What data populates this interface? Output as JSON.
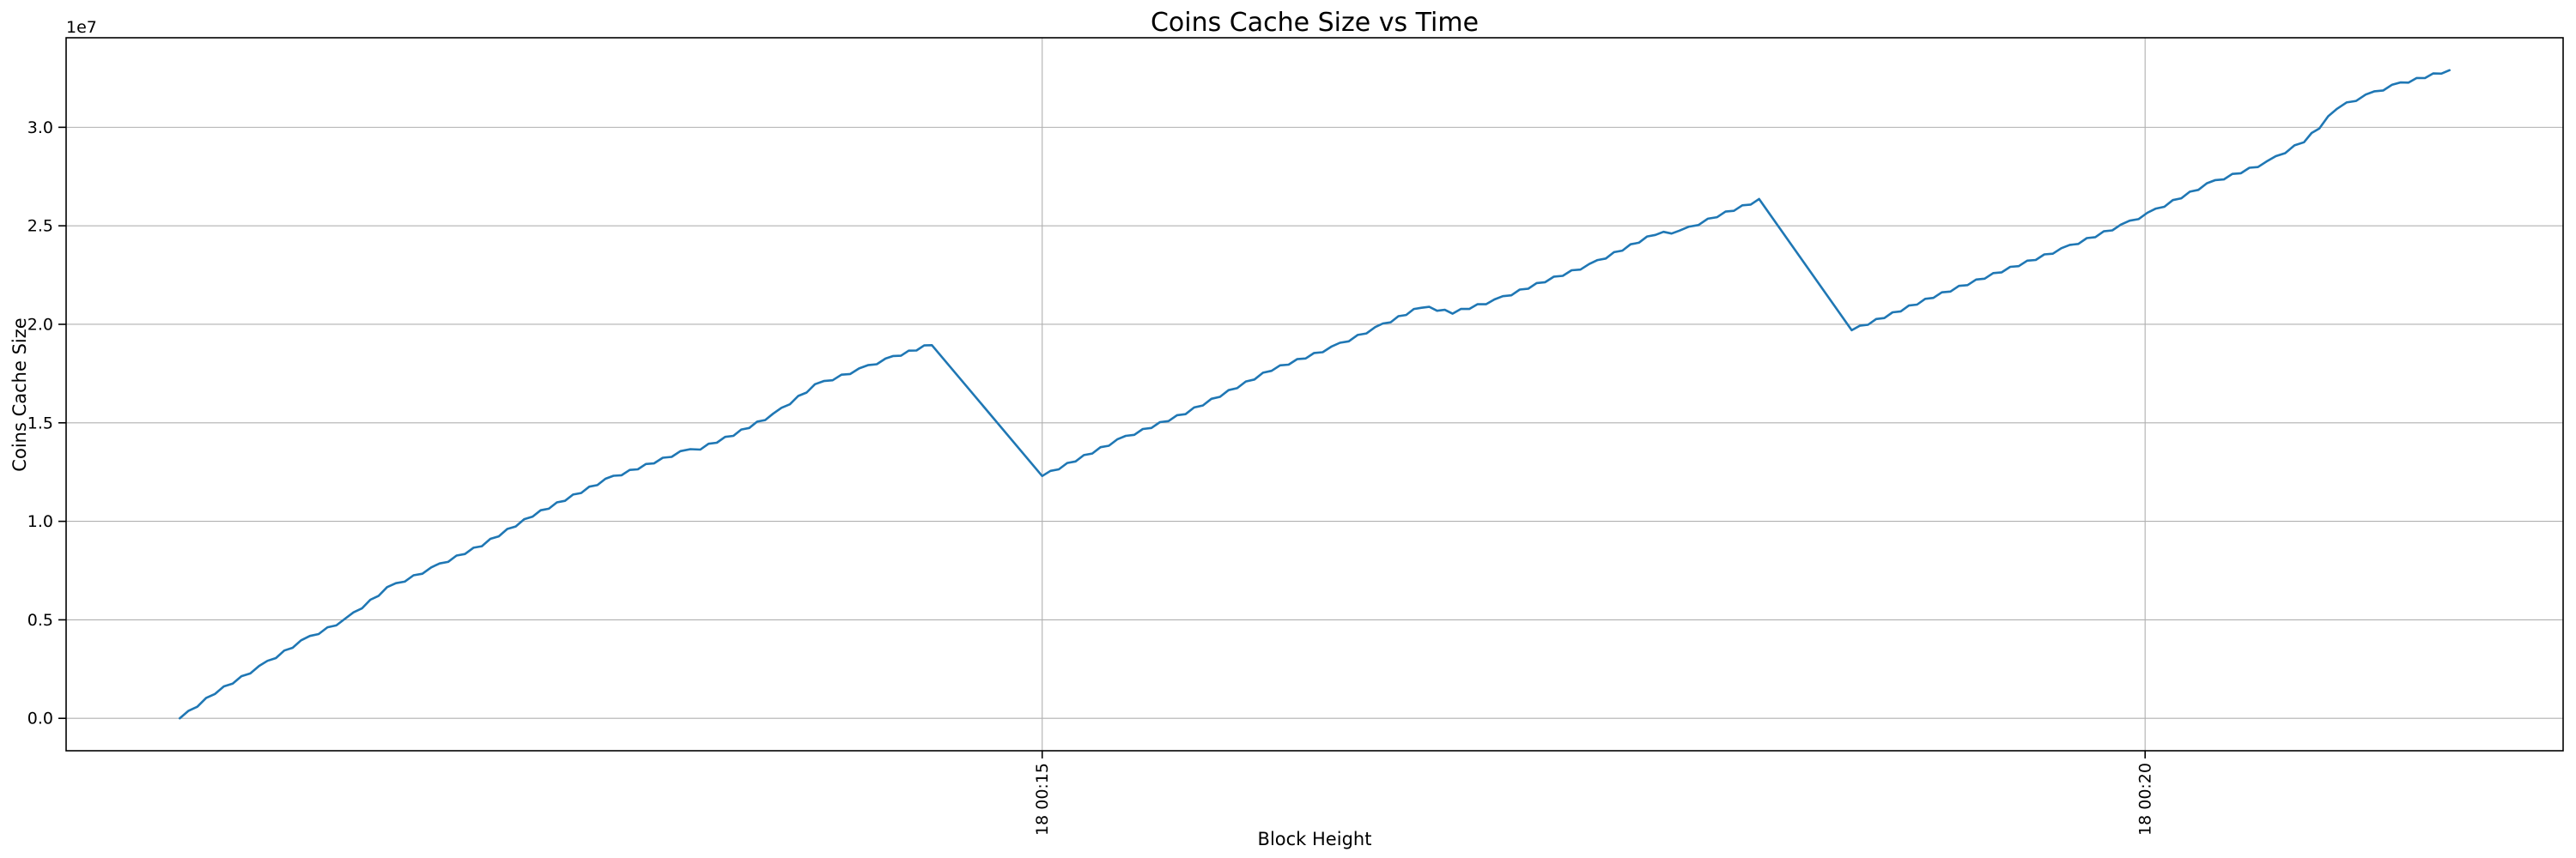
{
  "chart_data": {
    "type": "line",
    "title": "Coins Cache Size vs Time",
    "xlabel": "Block Height",
    "ylabel": "Coins Cache Size",
    "y_offset_label": "1e7",
    "grid": true,
    "legend": null,
    "colors": {
      "line": "#1f77b4",
      "grid": "#b0b0b0",
      "spine": "#000000",
      "background": "#ffffff"
    },
    "x_axis": {
      "unit": "time (day hh:mm), minutes since day-18 00:00",
      "lim_minutes": [
        10.575,
        21.895
      ],
      "ticks": [
        {
          "value": 15,
          "label": "18 00:15"
        },
        {
          "value": 20,
          "label": "18 00:20"
        }
      ],
      "tick_rotation_deg": 90
    },
    "y_axis": {
      "unit": "coins cache size (value × 1e7)",
      "lim_e7": [
        -0.1645,
        3.4545
      ],
      "ticks": [
        {
          "value": 0.0,
          "label": "0.0"
        },
        {
          "value": 0.5,
          "label": "0.5"
        },
        {
          "value": 1.0,
          "label": "1.0"
        },
        {
          "value": 1.5,
          "label": "1.5"
        },
        {
          "value": 2.0,
          "label": "2.0"
        },
        {
          "value": 2.5,
          "label": "2.5"
        },
        {
          "value": 3.0,
          "label": "3.0"
        }
      ]
    },
    "series": [
      {
        "name": "coins-cache-size",
        "points_t_min_v_e7": [
          [
            11.09,
            0.0
          ],
          [
            11.25,
            0.13
          ],
          [
            11.45,
            0.26
          ],
          [
            11.64,
            0.39
          ],
          [
            11.84,
            0.5
          ],
          [
            12.03,
            0.66
          ],
          [
            12.23,
            0.76
          ],
          [
            12.46,
            0.88
          ],
          [
            12.69,
            1.03
          ],
          [
            13.02,
            1.21
          ],
          [
            13.24,
            1.3
          ],
          [
            13.36,
            1.35
          ],
          [
            13.45,
            1.37
          ],
          [
            13.6,
            1.44
          ],
          [
            13.78,
            1.54
          ],
          [
            13.97,
            1.69
          ],
          [
            14.17,
            1.77
          ],
          [
            14.29,
            1.82
          ],
          [
            14.5,
            1.9
          ],
          [
            15.0,
            1.23
          ],
          [
            15.34,
            1.41
          ],
          [
            15.65,
            1.55
          ],
          [
            16.04,
            1.77
          ],
          [
            16.31,
            1.88
          ],
          [
            16.51,
            1.98
          ],
          [
            16.72,
            2.09
          ],
          [
            16.86,
            2.06
          ],
          [
            17.05,
            2.12
          ],
          [
            17.28,
            2.22
          ],
          [
            17.48,
            2.3
          ],
          [
            17.78,
            2.46
          ],
          [
            17.89,
            2.47
          ],
          [
            18.06,
            2.55
          ],
          [
            18.25,
            2.63
          ],
          [
            18.67,
            1.97
          ],
          [
            19.04,
            2.14
          ],
          [
            19.35,
            2.27
          ],
          [
            19.62,
            2.38
          ],
          [
            19.89,
            2.5
          ],
          [
            20.01,
            2.56
          ],
          [
            20.28,
            2.71
          ],
          [
            20.55,
            2.82
          ],
          [
            20.72,
            2.93
          ],
          [
            20.79,
            3.0
          ],
          [
            20.87,
            3.1
          ],
          [
            21.0,
            3.16
          ],
          [
            21.12,
            3.21
          ],
          [
            21.38,
            3.29
          ]
        ]
      }
    ]
  }
}
